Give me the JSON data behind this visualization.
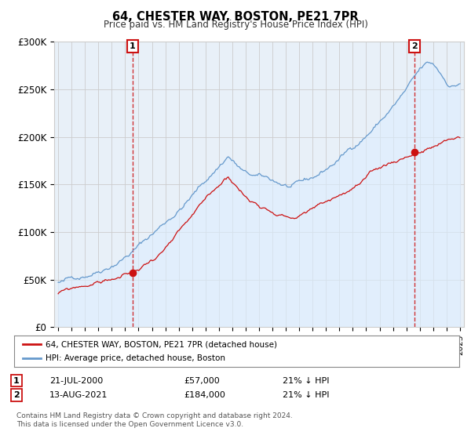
{
  "title": "64, CHESTER WAY, BOSTON, PE21 7PR",
  "subtitle": "Price paid vs. HM Land Registry's House Price Index (HPI)",
  "hpi_color": "#6699cc",
  "hpi_fill": "#ddeeff",
  "price_color": "#cc1111",
  "marker1_date_x": 2000.54,
  "marker1_price": 57000,
  "marker1_date_str": "21-JUL-2000",
  "marker1_text": "21% ↓ HPI",
  "marker2_date_x": 2021.62,
  "marker2_price": 184000,
  "marker2_date_str": "13-AUG-2021",
  "marker2_text": "21% ↓ HPI",
  "ylim": [
    0,
    300000
  ],
  "xlim_start": 1994.7,
  "xlim_end": 2025.3,
  "yticks": [
    0,
    50000,
    100000,
    150000,
    200000,
    250000,
    300000
  ],
  "ytick_labels": [
    "£0",
    "£50K",
    "£100K",
    "£150K",
    "£200K",
    "£250K",
    "£300K"
  ],
  "xticks": [
    1995,
    1996,
    1997,
    1998,
    1999,
    2000,
    2001,
    2002,
    2003,
    2004,
    2005,
    2006,
    2007,
    2008,
    2009,
    2010,
    2011,
    2012,
    2013,
    2014,
    2015,
    2016,
    2017,
    2018,
    2019,
    2020,
    2021,
    2022,
    2023,
    2024,
    2025
  ],
  "background_color": "#ffffff",
  "plot_bg_color": "#e8f0f8",
  "grid_color": "#cccccc",
  "legend_label_red": "64, CHESTER WAY, BOSTON, PE21 7PR (detached house)",
  "legend_label_blue": "HPI: Average price, detached house, Boston",
  "footer": "Contains HM Land Registry data © Crown copyright and database right 2024.\nThis data is licensed under the Open Government Licence v3.0."
}
